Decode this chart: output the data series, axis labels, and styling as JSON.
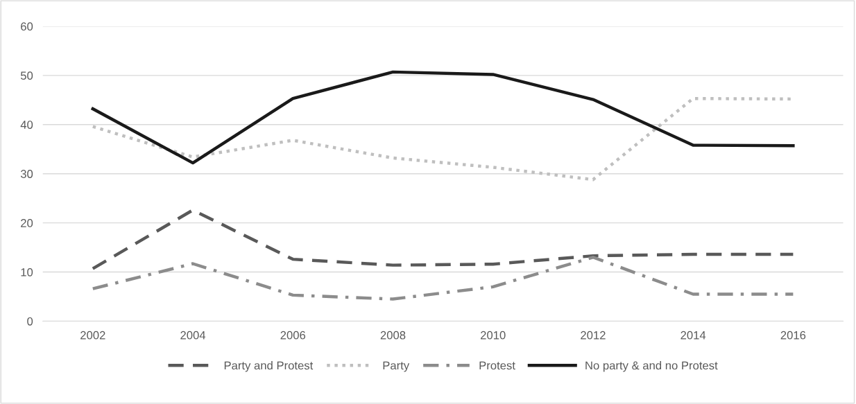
{
  "chart_data": {
    "type": "line",
    "categories": [
      "2002",
      "2004",
      "2006",
      "2008",
      "2010",
      "2012",
      "2014",
      "2016"
    ],
    "ylim": [
      0,
      60
    ],
    "yticks": [
      0,
      10,
      20,
      30,
      40,
      50,
      60
    ],
    "grid": "y",
    "legend": "bottom",
    "marker": "none",
    "series": [
      {
        "name": "Party and Protest",
        "color": "#595959",
        "line_style": "dashed",
        "values": [
          10.7,
          22.6,
          12.6,
          11.4,
          11.6,
          13.3,
          13.6,
          13.6
        ]
      },
      {
        "name": "Party",
        "color": "#bfbfbf",
        "line_style": "dotted",
        "values": [
          39.6,
          33.4,
          36.8,
          33.2,
          31.3,
          28.8,
          45.3,
          45.2
        ]
      },
      {
        "name": "Protest",
        "color": "#8c8c8c",
        "line_style": "dashdot",
        "values": [
          6.6,
          11.7,
          5.3,
          4.5,
          7.0,
          13.0,
          5.5,
          5.5
        ]
      },
      {
        "name": "No party & and no Protest",
        "color": "#1a1a1a",
        "line_style": "solid",
        "values": [
          43.2,
          32.2,
          45.3,
          50.7,
          50.2,
          45.1,
          35.8,
          35.7
        ]
      }
    ]
  }
}
